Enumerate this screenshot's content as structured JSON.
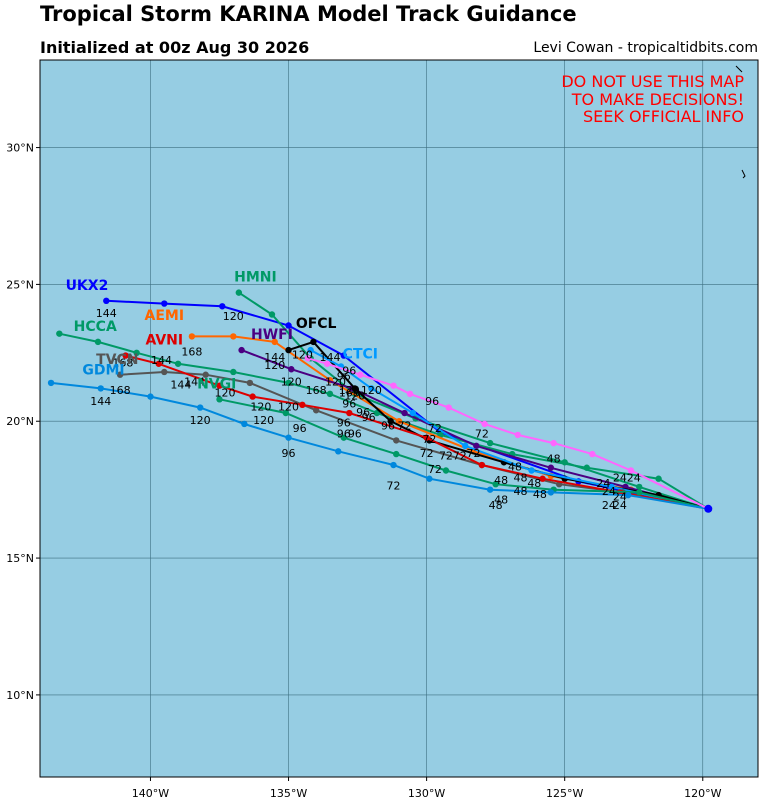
{
  "header": {
    "title": "Tropical Storm KARINA Model Track Guidance",
    "subtitle": "Initialized at 00z Aug 30 2026",
    "credit": "Levi Cowan - tropicaltidbits.com"
  },
  "warning": {
    "line1": "DO NOT USE THIS MAP",
    "line2": "TO MAKE DECISIONS!",
    "line3": "SEEK OFFICIAL INFO"
  },
  "colors": {
    "ocean": "#96cde3",
    "grid": "#3d6f80",
    "warning": "#ff0000"
  },
  "axes": {
    "lon_ticks": [
      "140°W",
      "135°W",
      "130°W",
      "125°W",
      "120°W"
    ],
    "lat_ticks": [
      "30°N",
      "25°N",
      "20°N",
      "15°N",
      "10°N"
    ]
  },
  "chart_data": {
    "type": "scatter",
    "xlim": [
      -144,
      -118
    ],
    "ylim": [
      7,
      33.2
    ],
    "grid": true,
    "series": [
      {
        "name": "UKX2",
        "color": "#0000ff",
        "label": {
          "lon": -142.3,
          "lat": 24.8
        },
        "lon": [
          -119.8,
          -124.5,
          -129.5,
          -133.0,
          -135.0,
          -137.4,
          -139.5,
          -141.6
        ],
        "lat": [
          16.8,
          17.8,
          19.6,
          22.4,
          23.5,
          24.2,
          24.3,
          24.4
        ],
        "hour_labels": [
          {
            "text": "120",
            "lon": -137.0,
            "lat": 23.7
          },
          {
            "text": "144",
            "lon": -141.6,
            "lat": 23.8
          }
        ]
      },
      {
        "name": "HMNI",
        "color": "#009966",
        "label": {
          "lon": -136.2,
          "lat": 25.1
        },
        "lon": [
          -119.8,
          -122.3,
          -125.0,
          -127.7,
          -130.4,
          -132.6,
          -134.2,
          -135.6,
          -136.8
        ],
        "lat": [
          16.8,
          17.6,
          18.5,
          19.2,
          20.1,
          21.0,
          22.3,
          23.9,
          24.7
        ],
        "hour_labels": []
      },
      {
        "name": "HCCA",
        "color": "#009966",
        "label": {
          "lon": -142.0,
          "lat": 23.3
        },
        "lon": [
          -119.8,
          -121.6,
          -124.2,
          -126.9,
          -129.5,
          -131.8,
          -133.5,
          -135.0,
          -137.0,
          -139.0,
          -140.5,
          -141.9,
          -143.3
        ],
        "lat": [
          16.8,
          17.9,
          18.3,
          18.8,
          19.5,
          20.3,
          21.0,
          21.4,
          21.8,
          22.1,
          22.5,
          22.9,
          23.2
        ],
        "hour_labels": []
      },
      {
        "name": "AEMI",
        "color": "#ff6600",
        "label": {
          "lon": -139.5,
          "lat": 23.7
        },
        "lon": [
          -119.8,
          -122.6,
          -125.5,
          -128.3,
          -131.0,
          -133.5,
          -135.5,
          -137.0,
          -138.5
        ],
        "lat": [
          16.8,
          17.5,
          18.0,
          18.9,
          20.0,
          21.5,
          22.9,
          23.1,
          23.1
        ],
        "hour_labels": [
          {
            "text": "168",
            "lon": -138.5,
            "lat": 22.4
          }
        ]
      },
      {
        "name": "HWFI",
        "color": "#4b0082",
        "label": {
          "lon": -135.6,
          "lat": 23.0
        },
        "lon": [
          -119.8,
          -122.8,
          -125.5,
          -128.2,
          -130.8,
          -132.7,
          -134.9,
          -136.7
        ],
        "lat": [
          16.8,
          17.6,
          18.3,
          19.1,
          20.3,
          21.2,
          21.9,
          22.6
        ],
        "hour_labels": [
          {
            "text": "144",
            "lon": -135.5,
            "lat": 22.2
          },
          {
            "text": "120",
            "lon": -134.9,
            "lat": 21.3
          }
        ]
      },
      {
        "name": "OFCL",
        "color": "#000000",
        "label": {
          "lon": -134.0,
          "lat": 23.4
        },
        "lon": [
          -119.8,
          -121.6,
          -125.0,
          -127.2,
          -129.9,
          -131.3,
          -132.6,
          -134.1,
          -135.0
        ],
        "lat": [
          16.8,
          17.3,
          17.9,
          18.5,
          19.3,
          20.0,
          21.2,
          22.9,
          22.6
        ],
        "hour_labels": [
          {
            "text": "120",
            "lon": -134.5,
            "lat": 22.3
          },
          {
            "text": "96",
            "lon": -132.8,
            "lat": 21.7
          }
        ]
      },
      {
        "name": "CTCI",
        "color": "#0099ff",
        "label": {
          "lon": -132.4,
          "lat": 22.3
        },
        "lon": [
          -119.8,
          -123.3,
          -126.2,
          -128.6,
          -130.5,
          -132.0,
          -133.1,
          -134.2
        ],
        "lat": [
          16.8,
          17.6,
          18.2,
          19.1,
          20.3,
          21.2,
          22.0,
          22.6
        ],
        "hour_labels": []
      },
      {
        "name": "TVCN",
        "color": "#555555",
        "label": {
          "lon": -141.2,
          "lat": 22.1
        },
        "lon": [
          -119.8,
          -122.9,
          -125.2,
          -128.0,
          -131.1,
          -134.0,
          -136.4,
          -138.0,
          -139.5,
          -141.1
        ],
        "lat": [
          16.8,
          17.4,
          17.7,
          18.4,
          19.3,
          20.4,
          21.4,
          21.7,
          21.8,
          21.7
        ],
        "hour_labels": [
          {
            "text": "168",
            "lon": -141.1,
            "lat": 21.0
          }
        ]
      },
      {
        "name": "AVNI",
        "color": "#dd0000",
        "label": {
          "lon": -139.5,
          "lat": 22.8
        },
        "lon": [
          -119.8,
          -123.0,
          -125.8,
          -128.0,
          -130.0,
          -132.8,
          -134.5,
          -136.3,
          -137.5,
          -139.7,
          -140.9
        ],
        "lat": [
          16.8,
          17.4,
          17.9,
          18.4,
          19.4,
          20.3,
          20.6,
          20.9,
          21.3,
          22.1,
          22.4
        ],
        "hour_labels": [
          {
            "text": "144",
            "lon": -139.6,
            "lat": 22.1
          },
          {
            "text": "168",
            "lon": -141.0,
            "lat": 22.0
          }
        ]
      },
      {
        "name": "NVGI",
        "color": "#009966",
        "label": {
          "lon": -137.6,
          "lat": 21.2
        },
        "lon": [
          -119.8,
          -122.3,
          -125.4,
          -127.5,
          -129.3,
          -131.1,
          -133.0,
          -135.1,
          -137.5
        ],
        "lat": [
          16.8,
          17.4,
          17.5,
          17.7,
          18.2,
          18.8,
          19.4,
          20.3,
          20.8
        ],
        "hour_labels": [
          {
            "text": "120",
            "lon": -137.3,
            "lat": 20.9
          },
          {
            "text": "144",
            "lon": -138.4,
            "lat": 21.3
          }
        ]
      },
      {
        "name": "GDMI",
        "color": "#0088dd",
        "label": {
          "lon": -141.7,
          "lat": 21.7
        },
        "lon": [
          -119.8,
          -122.7,
          -125.5,
          -127.7,
          -129.9,
          -131.2,
          -133.2,
          -135.0,
          -136.6,
          -138.2,
          -140.0,
          -141.8,
          -143.6
        ],
        "lat": [
          16.8,
          17.3,
          17.4,
          17.5,
          17.9,
          18.4,
          18.9,
          19.4,
          19.9,
          20.5,
          20.9,
          21.2,
          21.4
        ],
        "hour_labels": [
          {
            "text": "144",
            "lon": -141.8,
            "lat": 20.6
          },
          {
            "text": "120",
            "lon": -138.2,
            "lat": 19.9
          },
          {
            "text": "96",
            "lon": -135.0,
            "lat": 18.7
          },
          {
            "text": "72",
            "lon": -131.2,
            "lat": 17.5
          },
          {
            "text": "48",
            "lon": -127.5,
            "lat": 16.8
          }
        ]
      },
      {
        "name": "",
        "color": "#ff66ff",
        "label": null,
        "lon": [
          -119.8,
          -122.6,
          -124.0,
          -125.4,
          -126.7,
          -127.9,
          -129.2,
          -130.6,
          -131.2,
          -132.4,
          -133.6,
          -134.3
        ],
        "lat": [
          16.8,
          18.2,
          18.8,
          19.2,
          19.5,
          19.9,
          20.5,
          21.0,
          21.3,
          21.7,
          22.1,
          22.3
        ],
        "hour_labels": [
          {
            "text": "96",
            "lon": -129.8,
            "lat": 20.6
          }
        ]
      }
    ],
    "extra_hour_labels": [
      {
        "text": "24",
        "lon": -123.0,
        "lat": 17.8
      },
      {
        "text": "24",
        "lon": -123.6,
        "lat": 17.6
      },
      {
        "text": "24",
        "lon": -123.4,
        "lat": 17.3
      },
      {
        "text": "24",
        "lon": -123.0,
        "lat": 17.1
      },
      {
        "text": "24",
        "lon": -123.4,
        "lat": 16.8
      },
      {
        "text": "24",
        "lon": -123.0,
        "lat": 16.8
      },
      {
        "text": "24",
        "lon": -122.5,
        "lat": 17.8
      },
      {
        "text": "48",
        "lon": -125.4,
        "lat": 18.5
      },
      {
        "text": "48",
        "lon": -126.8,
        "lat": 18.2
      },
      {
        "text": "48",
        "lon": -127.3,
        "lat": 17.7
      },
      {
        "text": "48",
        "lon": -126.6,
        "lat": 17.8
      },
      {
        "text": "48",
        "lon": -126.1,
        "lat": 17.6
      },
      {
        "text": "48",
        "lon": -126.6,
        "lat": 17.3
      },
      {
        "text": "48",
        "lon": -125.9,
        "lat": 17.2
      },
      {
        "text": "48",
        "lon": -127.3,
        "lat": 17.0
      },
      {
        "text": "72",
        "lon": -129.7,
        "lat": 19.6
      },
      {
        "text": "72",
        "lon": -128.0,
        "lat": 19.4
      },
      {
        "text": "72",
        "lon": -130.8,
        "lat": 19.7
      },
      {
        "text": "72",
        "lon": -129.9,
        "lat": 19.2
      },
      {
        "text": "72",
        "lon": -130.0,
        "lat": 18.7
      },
      {
        "text": "72",
        "lon": -129.3,
        "lat": 18.6
      },
      {
        "text": "72",
        "lon": -128.8,
        "lat": 18.6
      },
      {
        "text": "72",
        "lon": -128.3,
        "lat": 18.7
      },
      {
        "text": "72",
        "lon": -129.7,
        "lat": 18.1
      },
      {
        "text": "96",
        "lon": -132.1,
        "lat": 20.0
      },
      {
        "text": "96",
        "lon": -132.3,
        "lat": 20.2
      },
      {
        "text": "96",
        "lon": -132.8,
        "lat": 20.5
      },
      {
        "text": "96",
        "lon": -133.0,
        "lat": 19.8
      },
      {
        "text": "96",
        "lon": -133.0,
        "lat": 19.4
      },
      {
        "text": "96",
        "lon": -132.6,
        "lat": 19.4
      },
      {
        "text": "96",
        "lon": -131.4,
        "lat": 19.7
      },
      {
        "text": "96",
        "lon": -134.6,
        "lat": 19.6
      },
      {
        "text": "96",
        "lon": -133.0,
        "lat": 21.5
      },
      {
        "text": "120",
        "lon": -133.3,
        "lat": 21.3
      },
      {
        "text": "120",
        "lon": -132.0,
        "lat": 21.0
      },
      {
        "text": "120",
        "lon": -132.6,
        "lat": 20.8
      },
      {
        "text": "120",
        "lon": -135.0,
        "lat": 20.4
      },
      {
        "text": "120",
        "lon": -136.0,
        "lat": 20.4
      },
      {
        "text": "120",
        "lon": -135.9,
        "lat": 19.9
      },
      {
        "text": "120",
        "lon": -135.5,
        "lat": 21.9
      },
      {
        "text": "144",
        "lon": -138.9,
        "lat": 21.2
      },
      {
        "text": "168",
        "lon": -134.0,
        "lat": 21.0
      },
      {
        "text": "168",
        "lon": -132.8,
        "lat": 20.9
      },
      {
        "text": "120",
        "lon": -132.8,
        "lat": 21.0
      },
      {
        "text": "144",
        "lon": -133.5,
        "lat": 22.2
      }
    ]
  }
}
